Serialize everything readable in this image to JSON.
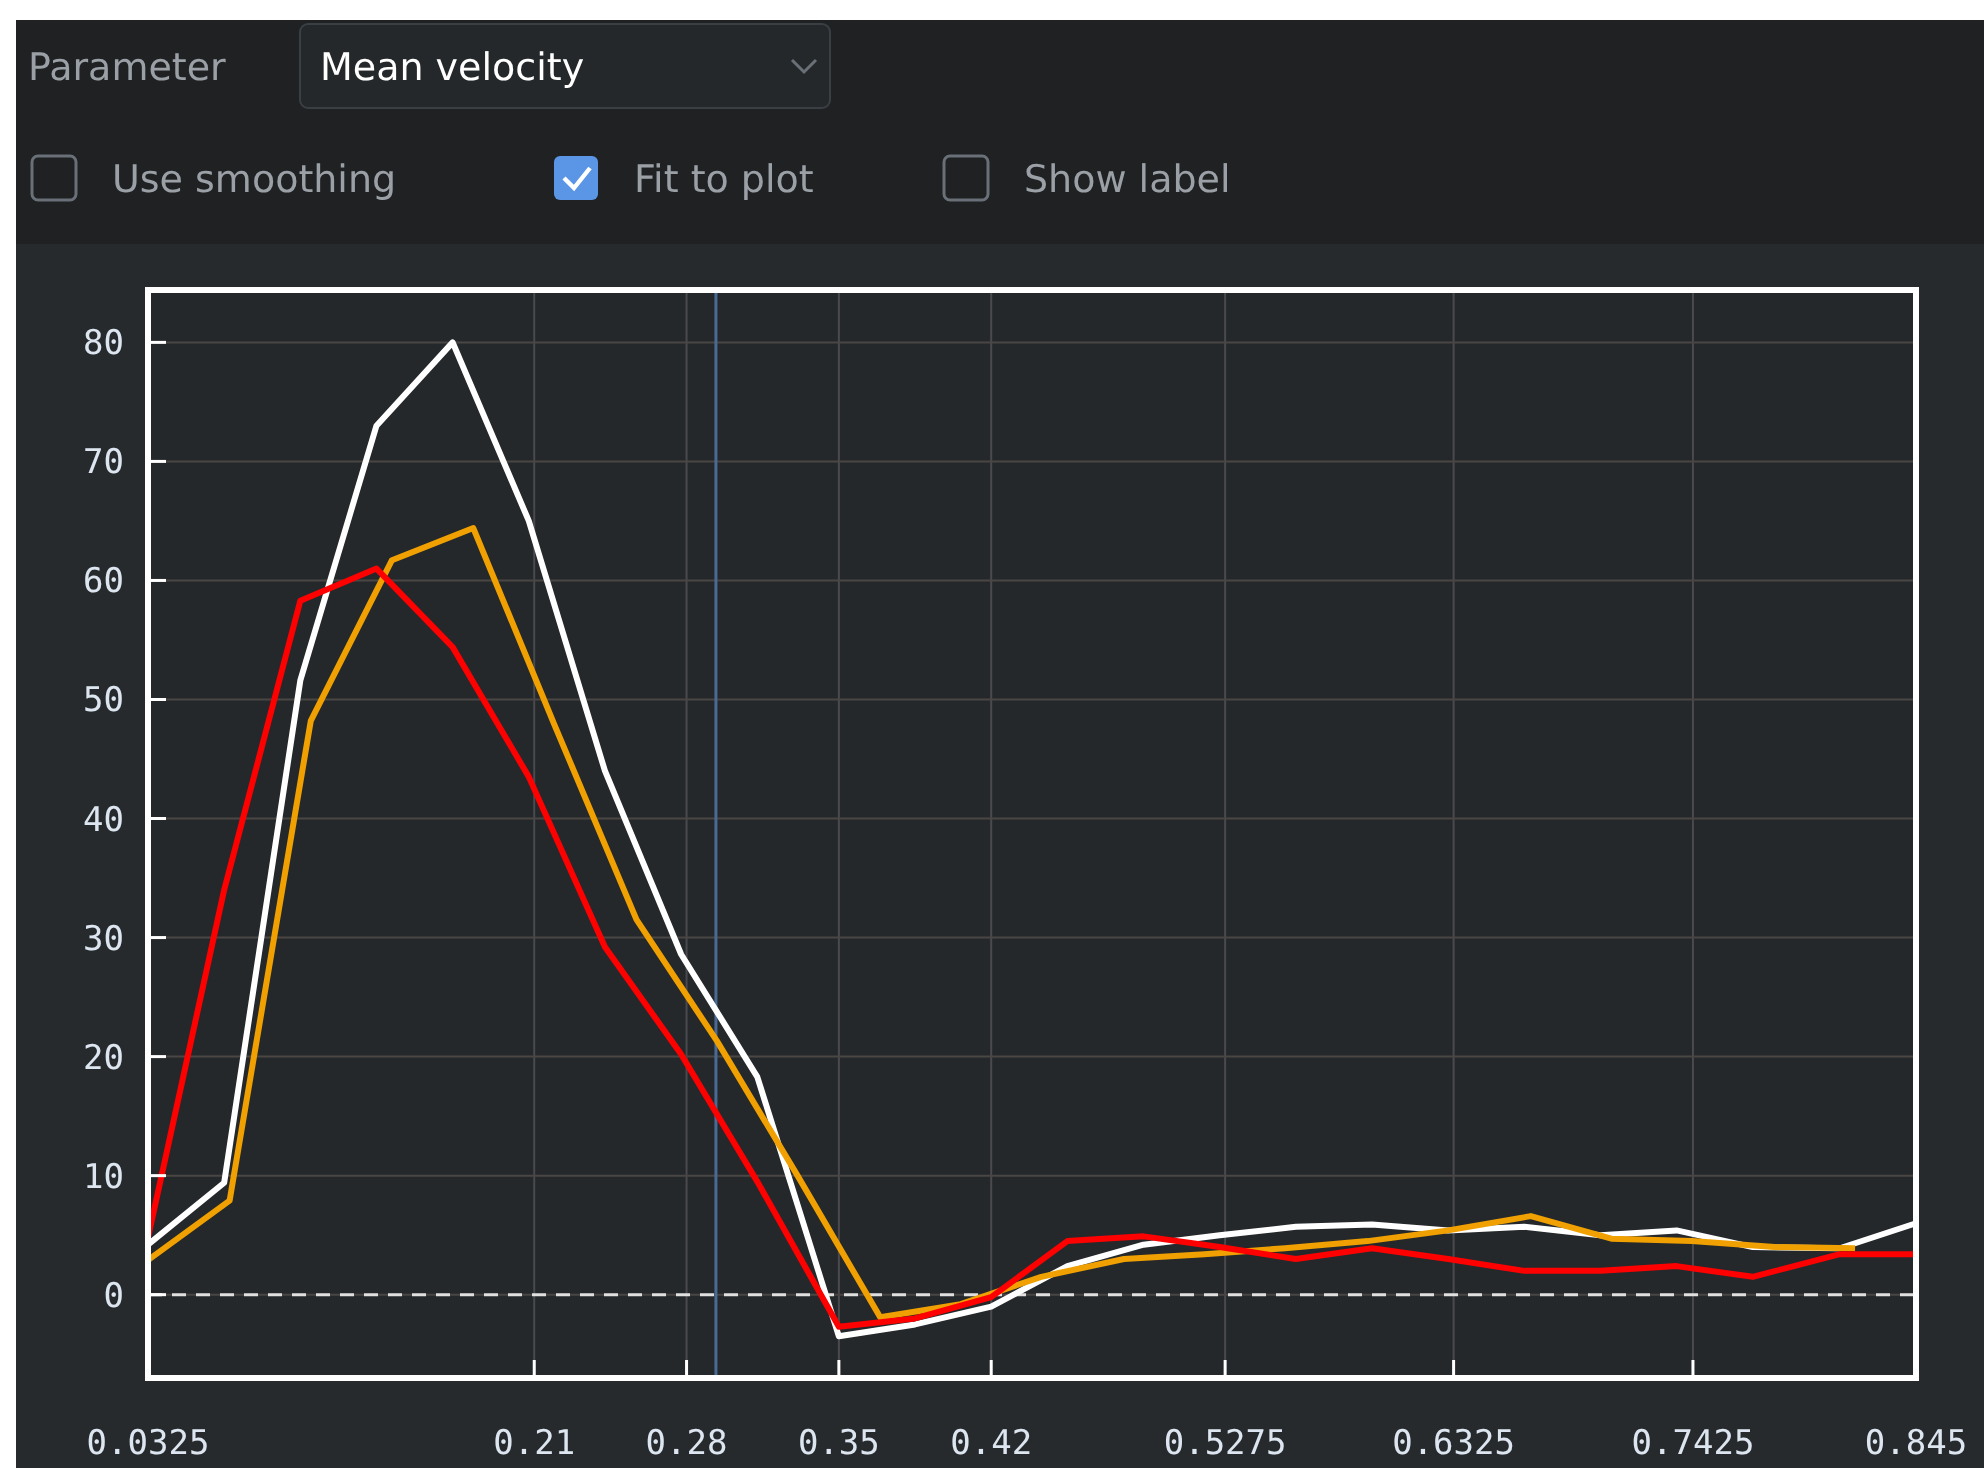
{
  "chart_data": {
    "type": "line",
    "annotations": [
      "Parameter",
      "Mean velocity",
      "Use smoothing",
      "Fit to plot",
      "Show label"
    ],
    "series": [
      {
        "color": "#ffffff",
        "x": [
          0.0325,
          0.0675,
          0.1025,
          0.1375,
          0.1725,
          0.2075,
          0.2425,
          0.2775,
          0.3125,
          0.35,
          0.385,
          0.42,
          0.455,
          0.49,
          0.525,
          0.56,
          0.595,
          0.63,
          0.665,
          0.7,
          0.735,
          0.77,
          0.81,
          0.845
        ],
        "values": [
          4.2,
          9.4,
          51.6,
          73,
          80,
          65,
          44,
          28.6,
          18.3,
          -3.5,
          -2.5,
          -1,
          2.4,
          4.2,
          5,
          5.7,
          5.9,
          5.4,
          5.7,
          5,
          5.4,
          4,
          3.9,
          6
        ]
      },
      {
        "color": "#f0a000",
        "x": [
          0.0325,
          0.07,
          0.1073,
          0.1446,
          0.182,
          0.219,
          0.257,
          0.294,
          0.331,
          0.369,
          0.406,
          0.443,
          0.481,
          0.518,
          0.555,
          0.593,
          0.63,
          0.668,
          0.705,
          0.742,
          0.78,
          0.817
        ],
        "values": [
          2.9,
          7.9,
          48.2,
          61.7,
          64.4,
          48,
          31.5,
          21.3,
          10,
          -1.9,
          -0.8,
          1.5,
          3,
          3.4,
          3.9,
          4.5,
          5.4,
          6.6,
          4.7,
          4.5,
          4,
          3.9
        ]
      },
      {
        "color": "#ff0000",
        "x": [
          0.0325,
          0.0675,
          0.1025,
          0.1375,
          0.1725,
          0.2075,
          0.2425,
          0.2775,
          0.3125,
          0.35,
          0.385,
          0.42,
          0.455,
          0.49,
          0.525,
          0.56,
          0.595,
          0.63,
          0.665,
          0.7,
          0.735,
          0.77,
          0.81,
          0.845
        ],
        "values": [
          4.8,
          34,
          58.3,
          61,
          54.4,
          43.5,
          29.2,
          20.2,
          9.5,
          -2.7,
          -2,
          -0.2,
          4.5,
          4.9,
          4,
          3,
          3.9,
          3,
          2,
          2,
          2.4,
          1.5,
          3.4,
          3.4
        ]
      }
    ],
    "xlim": [
      0.0325,
      0.845
    ],
    "xticks": [
      0.0325,
      0.21,
      0.28,
      0.35,
      0.42,
      0.5275,
      0.6325,
      0.7425,
      0.845
    ],
    "ylim": [
      -7,
      84.4
    ],
    "yticks": [
      0,
      10,
      20,
      30,
      40,
      50,
      60,
      70,
      80
    ],
    "ref_lines": [
      {
        "axis": "y",
        "value": 0,
        "color": "#e0e0e0",
        "line_style": "dashed"
      },
      {
        "axis": "x",
        "value": 0.2935,
        "color": "#4a6a96",
        "line_style": "solid"
      }
    ],
    "grid": true,
    "marker": "none",
    "line_style": "solid"
  }
}
